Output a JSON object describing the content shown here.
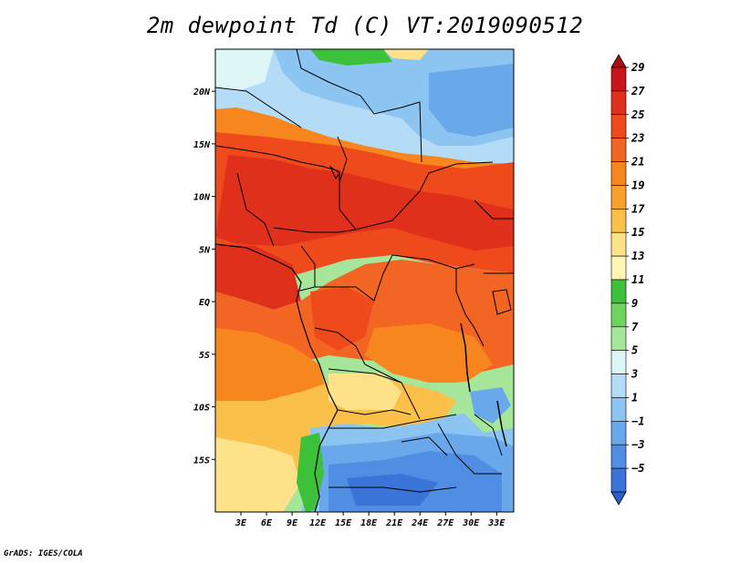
{
  "title": "2m dewpoint Td (C) VT:2019090512",
  "credit": "GrADS: IGES/COLA",
  "map": {
    "lon_range": [
      0,
      35
    ],
    "lat_range": [
      -20,
      24
    ],
    "x_ticks": [
      "3E",
      "6E",
      "9E",
      "12E",
      "15E",
      "18E",
      "21E",
      "24E",
      "27E",
      "30E",
      "33E"
    ],
    "x_tick_values": [
      3,
      6,
      9,
      12,
      15,
      18,
      21,
      24,
      27,
      30,
      33
    ],
    "y_ticks": [
      "20N",
      "15N",
      "10N",
      "5N",
      "EQ",
      "5S",
      "10S",
      "15S"
    ],
    "y_tick_values": [
      20,
      15,
      10,
      5,
      0,
      -5,
      -10,
      -15
    ]
  },
  "colorbar": {
    "labels": [
      "29",
      "27",
      "25",
      "23",
      "21",
      "19",
      "17",
      "15",
      "13",
      "11",
      "9",
      "7",
      "5",
      "3",
      "1",
      "−1",
      "−3",
      "−5"
    ],
    "colors": [
      "#a50f15",
      "#c8141b",
      "#e0301c",
      "#ee4a1c",
      "#f26522",
      "#f7861f",
      "#f8a12c",
      "#fbc04a",
      "#fde28a",
      "#fdf6b5",
      "#3dc03a",
      "#6fd45e",
      "#a6e69a",
      "#dcf7f5",
      "#b4dcf7",
      "#8cc4f2",
      "#6aa8ec",
      "#4f8ee3",
      "#3a74d8",
      "#2a5fd0"
    ]
  }
}
